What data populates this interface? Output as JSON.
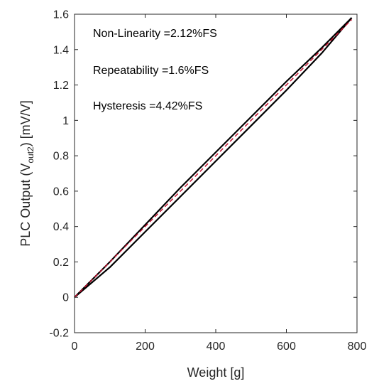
{
  "chart_data": {
    "type": "line",
    "title": "",
    "xlabel": "Weight [g]",
    "ylabel": {
      "prefix": "PLC Output  (V",
      "subscript": "out2",
      "suffix": ")  [mV/V]"
    },
    "xlim": [
      0,
      800
    ],
    "ylim": [
      -0.2,
      1.6
    ],
    "xticks": [
      0,
      200,
      400,
      600,
      800
    ],
    "yticks": [
      -0.2,
      0,
      0.2,
      0.4,
      0.6,
      0.8,
      1,
      1.2,
      1.4,
      1.6
    ],
    "xtick_labels": [
      "0",
      "200",
      "400",
      "600",
      "800"
    ],
    "ytick_labels": [
      "-0.2",
      "0",
      "0.2",
      "0.4",
      "0.6",
      "0.8",
      "1",
      "1.2",
      "1.4",
      "1.6"
    ],
    "grid": false,
    "box": true,
    "annotations": [
      "Non-Linearity =2.12%FS",
      "Repeatability =1.6%FS",
      "Hysteresis =4.42%FS"
    ],
    "series": [
      {
        "color": "#000000",
        "style": "solid",
        "x": [
          0,
          100,
          200,
          300,
          400,
          500,
          600,
          700,
          785
        ],
        "y": [
          0,
          0.2,
          0.41,
          0.62,
          0.82,
          1.02,
          1.22,
          1.41,
          1.58
        ]
      },
      {
        "color": "#000000",
        "style": "solid",
        "x": [
          0,
          100,
          200,
          300,
          400,
          500,
          600,
          700,
          785
        ],
        "y": [
          0,
          0.17,
          0.37,
          0.57,
          0.77,
          0.97,
          1.17,
          1.38,
          1.58
        ]
      },
      {
        "color": "#c8102e",
        "style": "dashed",
        "x": [
          0,
          785
        ],
        "y": [
          0,
          1.57
        ]
      }
    ]
  }
}
